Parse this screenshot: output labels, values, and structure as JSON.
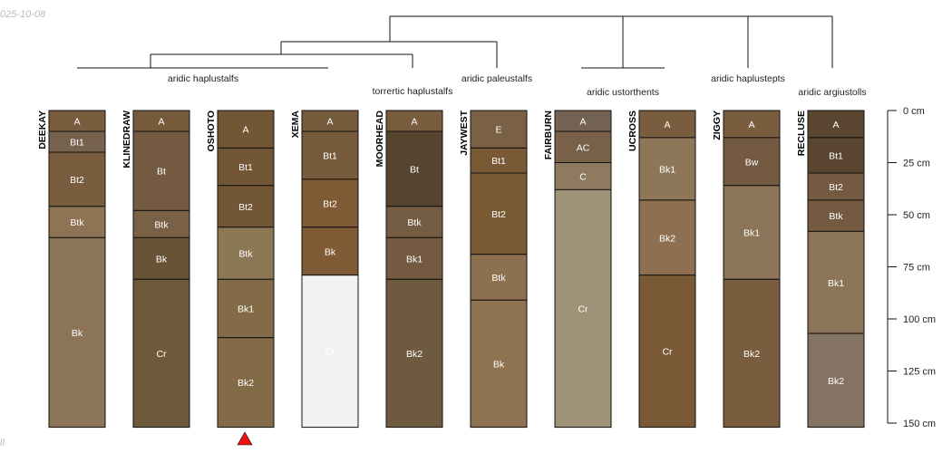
{
  "watermark_date": "025-10-08",
  "watermark_corner": "ll",
  "depth_axis": {
    "unit": "cm",
    "max_depth": 150,
    "ticks": [
      {
        "value": 0,
        "label": "0 cm"
      },
      {
        "value": 25,
        "label": "25 cm"
      },
      {
        "value": 50,
        "label": "50 cm"
      },
      {
        "value": 75,
        "label": "75 cm"
      },
      {
        "value": 100,
        "label": "100 cm"
      },
      {
        "value": 125,
        "label": "125 cm"
      },
      {
        "value": 150,
        "label": "150 cm"
      }
    ]
  },
  "taxa": [
    "aridic haplustalfs",
    "torrertic haplustalfs",
    "aridic paleustalfs",
    "aridic ustorthents",
    "aridic haplustepts",
    "aridic argiustolls"
  ],
  "profiles": [
    {
      "name": "DEEKAY",
      "horizons": [
        {
          "label": "A",
          "top": 0,
          "bottom": 10,
          "color": "#7a5c3e"
        },
        {
          "label": "Bt1",
          "top": 10,
          "bottom": 20,
          "color": "#77624d"
        },
        {
          "label": "Bt2",
          "top": 20,
          "bottom": 46,
          "color": "#7a5c3e"
        },
        {
          "label": "Btk",
          "top": 46,
          "bottom": 61,
          "color": "#8e7354"
        },
        {
          "label": "Bk",
          "top": 61,
          "bottom": 152,
          "color": "#8c7458"
        }
      ]
    },
    {
      "name": "KLINEDRAW",
      "horizons": [
        {
          "label": "A",
          "top": 0,
          "bottom": 10,
          "color": "#765a3c"
        },
        {
          "label": "Bt",
          "top": 10,
          "bottom": 48,
          "color": "#735a40"
        },
        {
          "label": "Btk",
          "top": 48,
          "bottom": 61,
          "color": "#7a6045"
        },
        {
          "label": "Bk",
          "top": 61,
          "bottom": 81,
          "color": "#685337"
        },
        {
          "label": "Cr",
          "top": 81,
          "bottom": 152,
          "color": "#6e593b"
        }
      ]
    },
    {
      "name": "OSHOTO",
      "horizons": [
        {
          "label": "A",
          "top": 0,
          "bottom": 18,
          "color": "#735636"
        },
        {
          "label": "Bt1",
          "top": 18,
          "bottom": 36,
          "color": "#735636"
        },
        {
          "label": "Bt2",
          "top": 36,
          "bottom": 56,
          "color": "#735636"
        },
        {
          "label": "Btk",
          "top": 56,
          "bottom": 81,
          "color": "#8d7855"
        },
        {
          "label": "Bk1",
          "top": 81,
          "bottom": 109,
          "color": "#836b48"
        },
        {
          "label": "Bk2",
          "top": 109,
          "bottom": 152,
          "color": "#836b48"
        }
      ]
    },
    {
      "name": "XEMA",
      "horizons": [
        {
          "label": "A",
          "top": 0,
          "bottom": 10,
          "color": "#765a3c"
        },
        {
          "label": "Bt1",
          "top": 10,
          "bottom": 33,
          "color": "#765a3c"
        },
        {
          "label": "Bt2",
          "top": 33,
          "bottom": 56,
          "color": "#7f5b35"
        },
        {
          "label": "Bk",
          "top": 56,
          "bottom": 79,
          "color": "#7f5b35"
        },
        {
          "label": "Cr",
          "top": 79,
          "bottom": 152,
          "color": "#f2f2f2"
        }
      ]
    },
    {
      "name": "MOORHEAD",
      "horizons": [
        {
          "label": "A",
          "top": 0,
          "bottom": 10,
          "color": "#7a5c3e"
        },
        {
          "label": "Bt",
          "top": 10,
          "bottom": 46,
          "color": "#564330"
        },
        {
          "label": "Btk",
          "top": 46,
          "bottom": 61,
          "color": "#755d43"
        },
        {
          "label": "Bk1",
          "top": 61,
          "bottom": 81,
          "color": "#735a40"
        },
        {
          "label": "Bk2",
          "top": 81,
          "bottom": 152,
          "color": "#6e5a3e"
        }
      ]
    },
    {
      "name": "JAYWEST",
      "horizons": [
        {
          "label": "E",
          "top": 0,
          "bottom": 18,
          "color": "#7a6045"
        },
        {
          "label": "Bt1",
          "top": 18,
          "bottom": 30,
          "color": "#7a5a35"
        },
        {
          "label": "Bt2",
          "top": 30,
          "bottom": 69,
          "color": "#7a5a35"
        },
        {
          "label": "Btk",
          "top": 69,
          "bottom": 91,
          "color": "#8c7050"
        },
        {
          "label": "Bk",
          "top": 91,
          "bottom": 152,
          "color": "#8f7350"
        }
      ]
    },
    {
      "name": "FAIRBURN",
      "horizons": [
        {
          "label": "A",
          "top": 0,
          "bottom": 10,
          "color": "#736152"
        },
        {
          "label": "AC",
          "top": 10,
          "bottom": 25,
          "color": "#786148"
        },
        {
          "label": "C",
          "top": 25,
          "bottom": 38,
          "color": "#8e7a5f"
        },
        {
          "label": "Cr",
          "top": 38,
          "bottom": 152,
          "color": "#a09277"
        }
      ]
    },
    {
      "name": "UCROSS",
      "horizons": [
        {
          "label": "A",
          "top": 0,
          "bottom": 13,
          "color": "#7a5c3e"
        },
        {
          "label": "Bk1",
          "top": 13,
          "bottom": 43,
          "color": "#8e7659"
        },
        {
          "label": "Bk2",
          "top": 43,
          "bottom": 79,
          "color": "#8e7050"
        },
        {
          "label": "Cr",
          "top": 79,
          "bottom": 152,
          "color": "#7a5a35"
        }
      ]
    },
    {
      "name": "ZIGGY",
      "horizons": [
        {
          "label": "A",
          "top": 0,
          "bottom": 13,
          "color": "#7a5c3e"
        },
        {
          "label": "Bw",
          "top": 13,
          "bottom": 36,
          "color": "#735a40"
        },
        {
          "label": "Bk1",
          "top": 36,
          "bottom": 81,
          "color": "#8c7458"
        },
        {
          "label": "Bk2",
          "top": 81,
          "bottom": 152,
          "color": "#7a5c3e"
        }
      ]
    },
    {
      "name": "RECLUSE",
      "horizons": [
        {
          "label": "A",
          "top": 0,
          "bottom": 13,
          "color": "#5a4630"
        },
        {
          "label": "Bt1",
          "top": 13,
          "bottom": 30,
          "color": "#5a4630"
        },
        {
          "label": "Bt2",
          "top": 30,
          "bottom": 43,
          "color": "#735a40"
        },
        {
          "label": "Btk",
          "top": 43,
          "bottom": 58,
          "color": "#735a40"
        },
        {
          "label": "Bk1",
          "top": 58,
          "bottom": 107,
          "color": "#8c7458"
        },
        {
          "label": "Bk2",
          "top": 107,
          "bottom": 152,
          "color": "#847363"
        }
      ]
    }
  ],
  "marker": {
    "profile": "OSHOTO",
    "color": "#ee1111"
  }
}
